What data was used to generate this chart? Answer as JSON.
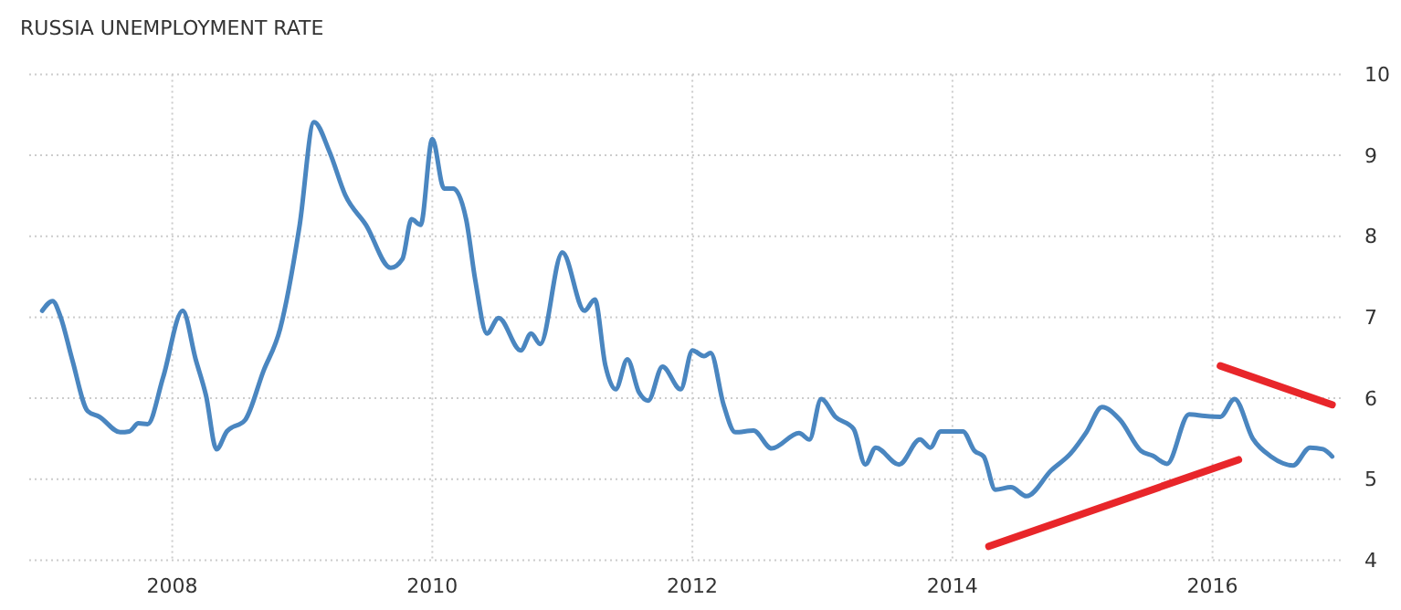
{
  "chart_data": {
    "type": "line",
    "title": "RUSSIA UNEMPLOYMENT RATE",
    "xlim": [
      2006.9,
      2017.0
    ],
    "xticks": [
      2008,
      2010,
      2012,
      2014,
      2016
    ],
    "ylim": [
      4,
      10
    ],
    "yticks": [
      4,
      5,
      6,
      7,
      8,
      9,
      10
    ],
    "grid": true,
    "marker": "none",
    "line_style": "solid",
    "series": [
      {
        "color": "#4a86c0",
        "x": [
          2007.0,
          2007.08,
          2007.14,
          2007.23,
          2007.35,
          2007.44,
          2007.6,
          2007.67,
          2007.74,
          2007.81,
          2007.93,
          2008.08,
          2008.18,
          2008.26,
          2008.34,
          2008.42,
          2008.56,
          2008.7,
          2008.83,
          2008.98,
          2009.09,
          2009.21,
          2009.33,
          2009.49,
          2009.68,
          2009.77,
          2009.84,
          2009.91,
          2010.0,
          2010.09,
          2010.16,
          2010.26,
          2010.33,
          2010.42,
          2010.51,
          2010.68,
          2010.76,
          2010.83,
          2011.0,
          2011.17,
          2011.25,
          2011.33,
          2011.41,
          2011.5,
          2011.59,
          2011.66,
          2011.77,
          2011.91,
          2012.0,
          2012.09,
          2012.14,
          2012.24,
          2012.33,
          2012.47,
          2012.61,
          2012.82,
          2012.9,
          2012.99,
          2013.1,
          2013.24,
          2013.33,
          2013.41,
          2013.59,
          2013.75,
          2013.83,
          2013.91,
          2014.08,
          2014.17,
          2014.24,
          2014.33,
          2014.45,
          2014.57,
          2014.76,
          2014.91,
          2015.03,
          2015.15,
          2015.29,
          2015.45,
          2015.54,
          2015.65,
          2015.82,
          2015.94,
          2016.06,
          2016.17,
          2016.31,
          2016.45,
          2016.62,
          2016.75,
          2016.85,
          2016.92
        ],
        "values": [
          7.08,
          7.2,
          7.01,
          6.48,
          5.84,
          5.77,
          5.58,
          5.59,
          5.69,
          5.68,
          6.26,
          7.08,
          6.48,
          6.03,
          5.37,
          5.59,
          5.73,
          6.33,
          6.86,
          8.14,
          9.41,
          9.04,
          8.51,
          8.14,
          7.61,
          7.72,
          8.21,
          8.14,
          9.2,
          8.59,
          8.59,
          8.21,
          7.46,
          6.8,
          6.99,
          6.59,
          6.8,
          6.67,
          7.8,
          7.08,
          7.22,
          6.41,
          6.11,
          6.48,
          6.07,
          5.97,
          6.39,
          6.11,
          6.59,
          6.52,
          6.56,
          5.92,
          5.58,
          5.6,
          5.38,
          5.57,
          5.49,
          5.99,
          5.77,
          5.62,
          5.18,
          5.39,
          5.18,
          5.49,
          5.39,
          5.59,
          5.59,
          5.35,
          5.28,
          4.87,
          4.9,
          4.79,
          5.11,
          5.32,
          5.58,
          5.89,
          5.73,
          5.35,
          5.29,
          5.19,
          5.8,
          5.78,
          5.77,
          5.99,
          5.5,
          5.28,
          5.17,
          5.39,
          5.37,
          5.28
        ]
      },
      {
        "color": "#e8262a",
        "x": [
          2014.28,
          2016.2
        ],
        "values": [
          4.17,
          5.24
        ]
      },
      {
        "color": "#e8262a",
        "x": [
          2016.06,
          2016.92
        ],
        "values": [
          6.4,
          5.92
        ]
      }
    ]
  }
}
